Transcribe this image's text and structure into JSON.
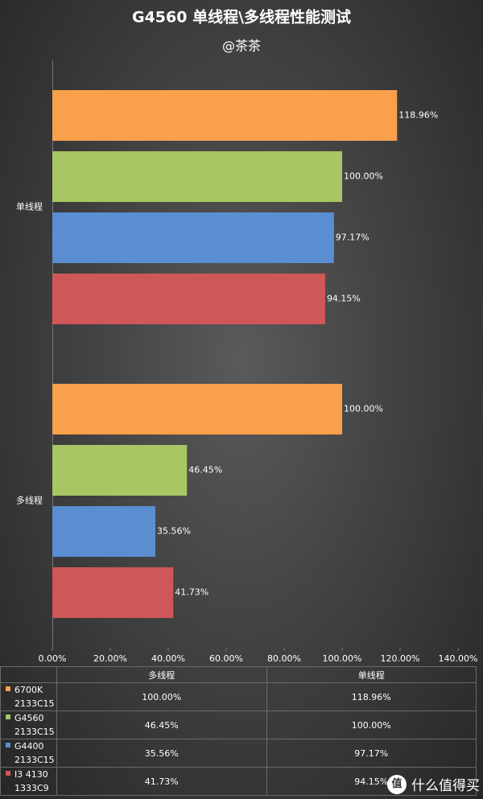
{
  "chart_data": {
    "type": "bar",
    "orientation": "horizontal",
    "title": "G4560 单线程\\多线程性能测试",
    "subtitle": "@茶茶",
    "categories": [
      "单线程",
      "多线程"
    ],
    "series": [
      {
        "name": "6700K 2133C15",
        "color": "#f9a04c",
        "values": [
          118.96,
          100
        ],
        "value_labels": [
          "118.96%",
          "100.00%"
        ]
      },
      {
        "name": "G4560 2133C15",
        "color": "#a6c764",
        "values": [
          100,
          46.45
        ],
        "value_labels": [
          "100.00%",
          "46.45%"
        ]
      },
      {
        "name": "G4400 2133C15",
        "color": "#5a8ed0",
        "values": [
          97.17,
          35.56
        ],
        "value_labels": [
          "97.17%",
          "35.56%"
        ]
      },
      {
        "name": "I3 4130 1333C9",
        "color": "#d05757",
        "values": [
          94.15,
          41.73
        ],
        "value_labels": [
          "94.15%",
          "41.73%"
        ]
      }
    ],
    "xlim": [
      0,
      140
    ],
    "xticks": [
      {
        "value": 0,
        "label": "0.00%"
      },
      {
        "value": 20,
        "label": "20.00%"
      },
      {
        "value": 40,
        "label": "40.00%"
      },
      {
        "value": 60,
        "label": "60.00%"
      },
      {
        "value": 80,
        "label": "80.00%"
      },
      {
        "value": 100,
        "label": "100.00%"
      },
      {
        "value": 120,
        "label": "120.00%"
      },
      {
        "value": 140,
        "label": "140.00%"
      }
    ],
    "grid": false,
    "data_table": true
  },
  "watermark_icon": "值",
  "watermark": "什么值得买"
}
